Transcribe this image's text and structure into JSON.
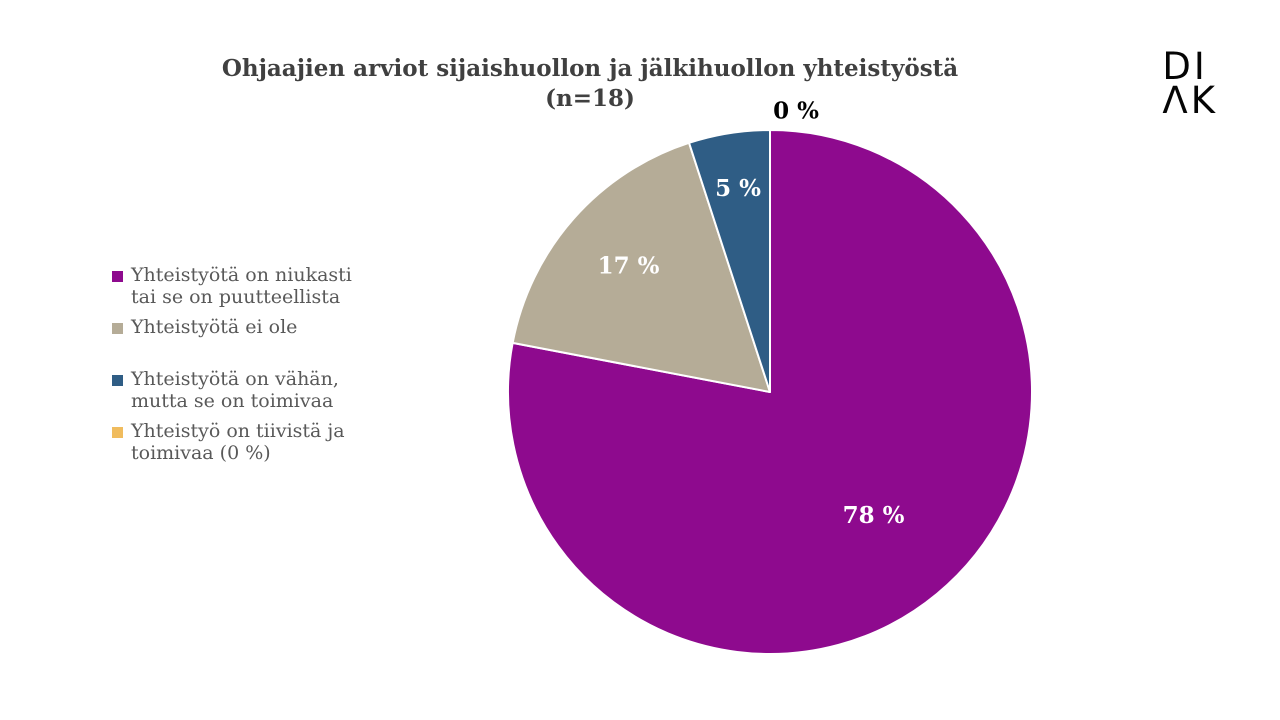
{
  "title": {
    "line1": "Ohjaajien arviot sijaishuollon ja jälkihuollon yhteistyöstä",
    "line2": "(n=18)"
  },
  "logo": {
    "line1": "DI",
    "line2": "ΛK"
  },
  "chart_data": {
    "type": "pie",
    "title": "Ohjaajien arviot sijaishuollon ja jälkihuollon yhteistyöstä (n=18)",
    "n": 18,
    "start_angle_deg": -90,
    "direction": "clockwise",
    "legend_position": "left",
    "slices": [
      {
        "label": "Yhteistyötä on niukasti tai se on puutteellista",
        "label_lines": [
          "Yhteistyötä on niukasti",
          "tai se on puutteellista"
        ],
        "value_pct": 78,
        "color": "#8E0A8E",
        "data_label": "78 %",
        "label_color": "#FFFFFF",
        "label_r": 0.62,
        "label_dx": 0,
        "label_dy": 0
      },
      {
        "label": "Yhteistyötä ei ole",
        "label_lines": [
          "Yhteistyötä ei ole"
        ],
        "value_pct": 17,
        "color": "#B5AC97",
        "data_label": "17 %",
        "label_color": "#FFFFFF",
        "label_r": 0.72,
        "label_dx": 0,
        "label_dy": 0
      },
      {
        "label": "Yhteistyötä on vähän, mutta se on toimivaa",
        "label_lines": [
          "Yhteistyötä on vähän,",
          "mutta se on toimivaa"
        ],
        "value_pct": 5,
        "color": "#2F5D85",
        "data_label": "5 %",
        "label_color": "#FFFFFF",
        "label_r": 0.78,
        "label_dx": 0,
        "label_dy": 0
      },
      {
        "label": "Yhteistyö on tiivistä ja toimivaa (0 %)",
        "label_lines": [
          "Yhteistyö on tiivistä ja",
          "toimivaa (0 %)"
        ],
        "value_pct": 0,
        "color": "#F0BC5E",
        "data_label": "0 %",
        "label_color": "#000000",
        "label_r": 1.09,
        "label_dx": 26,
        "label_dy": 6
      }
    ]
  }
}
